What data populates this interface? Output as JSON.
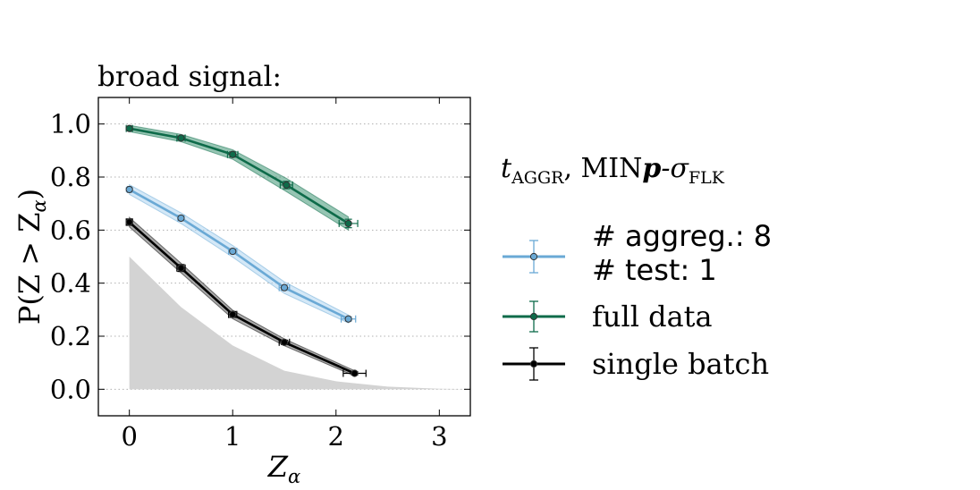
{
  "chart_data": {
    "type": "line",
    "title": "broad signal:",
    "xlabel": "Z",
    "xlabel_sub": "α",
    "ylabel": "P(Z > Z",
    "ylabel_sub": "α",
    "ylabel_end": ")",
    "xlim": [
      -0.3,
      3.3
    ],
    "ylim": [
      -0.1,
      1.1
    ],
    "xticks": [
      0,
      1,
      2,
      3
    ],
    "xtick_labels": [
      "0",
      "1",
      "2",
      "3"
    ],
    "yticks": [
      0.0,
      0.2,
      0.4,
      0.6,
      0.8,
      1.0
    ],
    "ytick_labels": [
      "0.0",
      "0.2",
      "0.4",
      "0.6",
      "0.8",
      "1.0"
    ],
    "grid": "horizontal dotted",
    "legend": {
      "title_main": "t",
      "title_sub": "AGGR",
      "title_sep": ", MIN",
      "title_bold": "p",
      "title_dash": "-σ",
      "title_sub2": "FLK",
      "placement": "right"
    },
    "null_distribution": {
      "name": "null distribution",
      "color": "#d3d3d3",
      "x": [
        0,
        0.5,
        1.0,
        1.5,
        2.0,
        2.5,
        3.0,
        3.3
      ],
      "y": [
        0.5,
        0.31,
        0.165,
        0.07,
        0.03,
        0.01,
        0.002,
        0.0
      ]
    },
    "series": [
      {
        "name": "full data",
        "color": "#0e6b4a",
        "band_color": "#2e8b68",
        "x": [
          0,
          0.5,
          1.0,
          1.52,
          2.12
        ],
        "y": [
          0.983,
          0.947,
          0.885,
          0.77,
          0.625
        ],
        "xerr": [
          0.03,
          0.04,
          0.05,
          0.06,
          0.09
        ],
        "yerr": [
          0.006,
          0.008,
          0.01,
          0.014,
          0.016
        ],
        "band": [
          0.012,
          0.014,
          0.018,
          0.025,
          0.025
        ]
      },
      {
        "name": "# aggreg.: 8",
        "name2": "# test: 1",
        "color": "#6aa9d5",
        "band_color": "#a9d1ef",
        "x": [
          0,
          0.5,
          1.0,
          1.5,
          2.12
        ],
        "y": [
          0.753,
          0.645,
          0.52,
          0.383,
          0.265
        ],
        "xerr": [
          0.02,
          0.03,
          0.04,
          0.05,
          0.07
        ],
        "yerr": [
          0.007,
          0.008,
          0.009,
          0.01,
          0.008
        ],
        "band": [
          0.018,
          0.02,
          0.022,
          0.022,
          0.015
        ]
      },
      {
        "name": "single batch",
        "color": "#000000",
        "band_color": "#555555",
        "x": [
          0,
          0.5,
          1.0,
          1.5,
          2.18
        ],
        "y": [
          0.63,
          0.457,
          0.282,
          0.177,
          0.06
        ],
        "xerr": [
          0.03,
          0.04,
          0.04,
          0.05,
          0.11
        ],
        "yerr": [
          0.012,
          0.013,
          0.011,
          0.008,
          0.006
        ],
        "band": [
          0.018,
          0.018,
          0.016,
          0.013,
          0.01
        ]
      }
    ]
  }
}
